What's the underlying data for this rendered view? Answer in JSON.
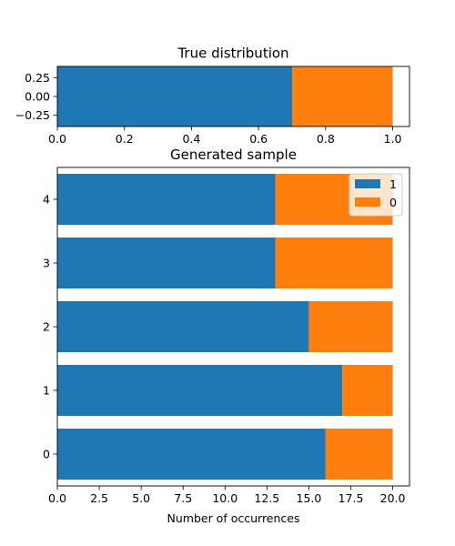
{
  "colors": {
    "series_1": "#1f77b4",
    "series_0": "#ff7f0e"
  },
  "chart_data": [
    {
      "type": "bar",
      "orientation": "horizontal",
      "stacked": true,
      "title": "True distribution",
      "xlabel": "",
      "ylabel": "",
      "xlim": [
        0,
        1.05
      ],
      "ylim": [
        -0.4,
        0.4
      ],
      "xticks": [
        0.0,
        0.2,
        0.4,
        0.6,
        0.8,
        1.0
      ],
      "xtick_labels": [
        "0.0",
        "0.2",
        "0.4",
        "0.6",
        "0.8",
        "1.0"
      ],
      "yticks": [
        0.25,
        0.0,
        -0.25
      ],
      "ytick_labels": [
        "0.25",
        "0.00",
        "−0.25"
      ],
      "categories": [
        0
      ],
      "series": [
        {
          "color": "#1f77b4",
          "values": [
            0.7
          ]
        },
        {
          "color": "#ff7f0e",
          "values": [
            0.3
          ]
        }
      ],
      "grid": false,
      "legend": false
    },
    {
      "type": "bar",
      "orientation": "horizontal",
      "stacked": true,
      "title": "Generated sample",
      "xlabel": "Number of occurrences",
      "ylabel": "",
      "xlim": [
        0,
        21
      ],
      "ylim": [
        -0.5,
        4.5
      ],
      "xticks": [
        0,
        2.5,
        5,
        7.5,
        10,
        12.5,
        15,
        17.5,
        20
      ],
      "xtick_labels": [
        "0.0",
        "2.5",
        "5.0",
        "7.5",
        "10.0",
        "12.5",
        "15.0",
        "17.5",
        "20.0"
      ],
      "yticks": [
        0,
        1,
        2,
        3,
        4
      ],
      "ytick_labels": [
        "0",
        "1",
        "2",
        "3",
        "4"
      ],
      "categories": [
        0,
        1,
        2,
        3,
        4
      ],
      "series": [
        {
          "name": "1",
          "color": "#1f77b4",
          "values": [
            16,
            17,
            15,
            13,
            13
          ]
        },
        {
          "name": "0",
          "color": "#ff7f0e",
          "values": [
            4,
            3,
            5,
            7,
            7
          ]
        }
      ],
      "grid": false,
      "legend": "top-right"
    }
  ]
}
